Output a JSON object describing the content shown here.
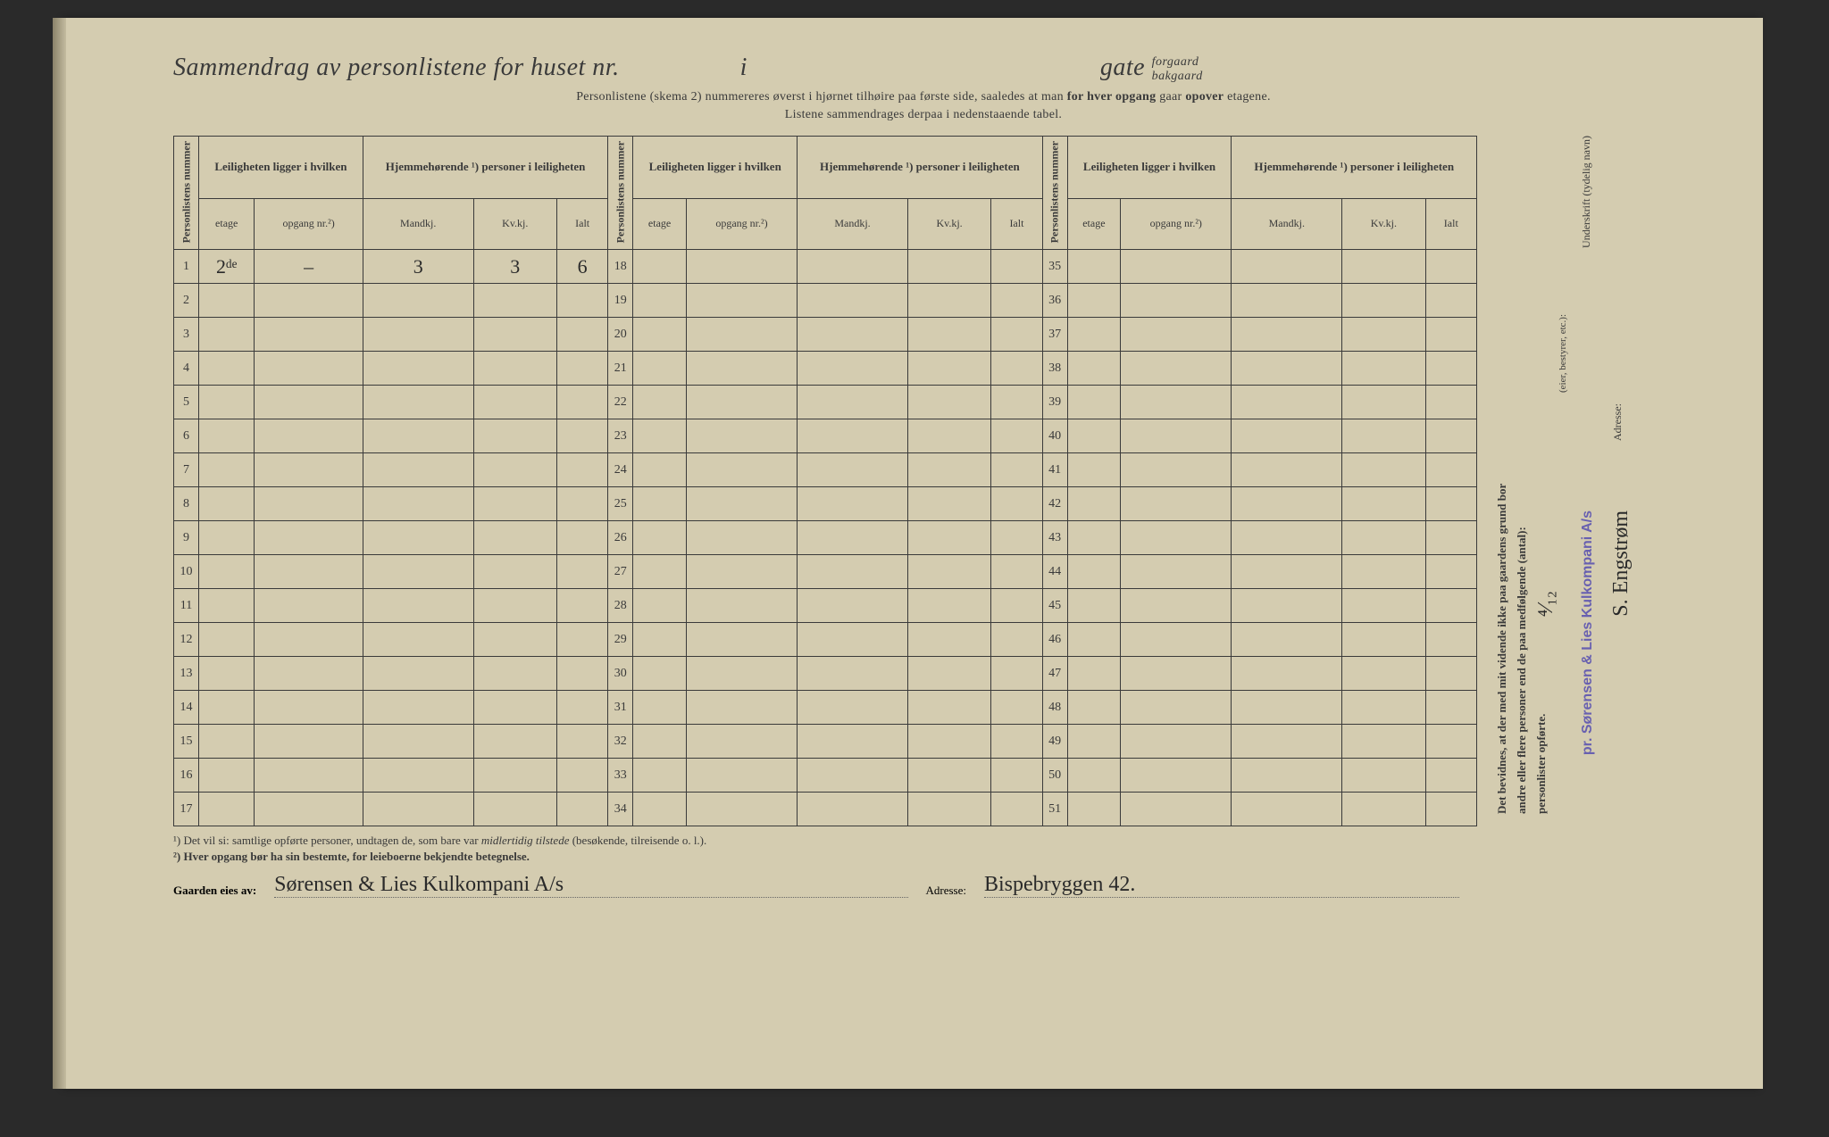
{
  "header": {
    "title_prefix": "Sammendrag av personlistene for huset nr.",
    "title_mid": "i",
    "title_suffix": "gate",
    "title_small_top": "forgaard",
    "title_small_bottom": "bakgaard",
    "subtitle1_a": "Personlistene (skema 2) nummereres øverst i hjørnet tilhøire paa første side, saaledes at man ",
    "subtitle1_b": "for hver opgang",
    "subtitle1_c": " gaar ",
    "subtitle1_d": "opover",
    "subtitle1_e": " etagene.",
    "subtitle2": "Listene sammendrages derpaa i nedenstaaende tabel."
  },
  "table": {
    "col_personlist": "Personlistens nummer",
    "col_leilighet_group": "Leiligheten ligger i hvilken",
    "col_hjemme_group": "Hjemmehørende ¹) personer i leiligheten",
    "col_etage": "etage",
    "col_opgang": "opgang nr.²)",
    "col_mandkj": "Mandkj.",
    "col_kvkj": "Kv.kj.",
    "col_ialt": "Ialt",
    "rows_col1": [
      1,
      2,
      3,
      4,
      5,
      6,
      7,
      8,
      9,
      10,
      11,
      12,
      13,
      14,
      15,
      16,
      17
    ],
    "rows_col2": [
      18,
      19,
      20,
      21,
      22,
      23,
      24,
      25,
      26,
      27,
      28,
      29,
      30,
      31,
      32,
      33,
      34
    ],
    "rows_col3": [
      35,
      36,
      37,
      38,
      39,
      40,
      41,
      42,
      43,
      44,
      45,
      46,
      47,
      48,
      49,
      50,
      51
    ],
    "data_row1": {
      "etage": "2ᵈᵉ",
      "opgang": "–",
      "mandkj": "3",
      "kvkj": "3",
      "ialt": "6"
    }
  },
  "footnotes": {
    "line1_a": "¹)  Det vil si: samtlige opførte personer, undtagen de, som bare var ",
    "line1_b": "midlertidig tilstede",
    "line1_c": " (besøkende, tilreisende o. l.).",
    "line2": "²)  Hver opgang bør ha sin bestemte, for leieboerne bekjendte betegnelse."
  },
  "sidebar": {
    "attest1": "Det bevidnes, at der med mit vidende ikke paa gaardens grund bor",
    "attest2": "andre eller flere personer end de paa medfølgende (antal):",
    "attest3": "personlister opførte.",
    "underskrift_label": "Underskrift (tydelig navn)",
    "role_label": "(eier, bestyrer, etc.):",
    "adresse_label": "Adresse:",
    "stamp": "pr. Sørensen & Lies Kulkompani A/s",
    "signature": "S. Engstrøm"
  },
  "bottom": {
    "label1": "Gaarden eies av:",
    "value1": "Sørensen & Lies Kulkompani A/s",
    "label2": "Adresse:",
    "value2": "Bispebryggen 42.",
    "date_frac": "⁴⁄₁₂"
  },
  "style": {
    "paper_color": "#d4ccb0",
    "ink_color": "#3a3a3a",
    "stamp_color": "#6860b0",
    "handwriting_color": "#2a2a2a"
  }
}
